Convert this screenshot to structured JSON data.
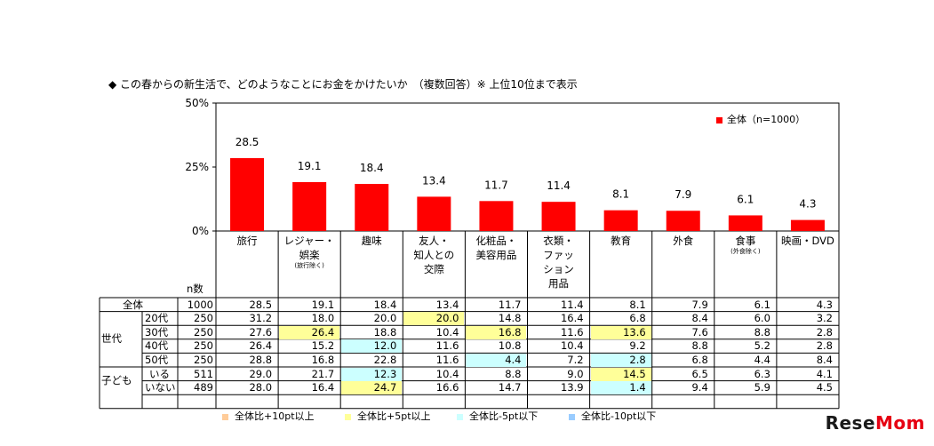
{
  "title": "◆ この春からの新生活で、どのようなことにお金をかけたいか　（複数回答）※ 上位10位まで表示",
  "chart_data": {
    "type": "bar",
    "ylim": [
      0,
      50
    ],
    "yticks": [
      "0%",
      "25%",
      "50%"
    ],
    "categories": [
      "旅行",
      "レジャー・娯楽",
      "趣味",
      "友人・知人との交際",
      "化粧品・美容用品",
      "衣類・ファッション用品",
      "教育",
      "外食",
      "食事",
      "映画・DVD"
    ],
    "category_lines": [
      [
        "旅行"
      ],
      [
        "レジャー・",
        "娯楽"
      ],
      [
        "趣味"
      ],
      [
        "友人・",
        "知人との",
        "交際"
      ],
      [
        "化粧品・",
        "美容用品"
      ],
      [
        "衣類・",
        "ファッ",
        "ション",
        "用品"
      ],
      [
        "教育"
      ],
      [
        "外食"
      ],
      [
        "食事"
      ],
      [
        "映画・DVD"
      ]
    ],
    "category_notes": [
      "",
      "(旅行除く)",
      "",
      "",
      "",
      "",
      "",
      "",
      "(外食除く)",
      ""
    ],
    "series": [
      {
        "name": "全体",
        "values": [
          28.5,
          19.1,
          18.4,
          13.4,
          11.7,
          11.4,
          8.1,
          7.9,
          6.1,
          4.3
        ],
        "color": "#ff0000"
      }
    ],
    "legend": {
      "label": "全体（n=1000）",
      "position": "top-right"
    },
    "value_labels": [
      "28.5",
      "19.1",
      "18.4",
      "13.4",
      "11.7",
      "11.4",
      "8.1",
      "7.9",
      "6.1",
      "4.3"
    ]
  },
  "table": {
    "n_header": "n数",
    "rows": [
      {
        "group": "",
        "label": "全体",
        "n": "1000",
        "values": [
          "28.5",
          "19.1",
          "18.4",
          "13.4",
          "11.7",
          "11.4",
          "8.1",
          "7.9",
          "6.1",
          "4.3"
        ],
        "hl": [
          "",
          "",
          "",
          "",
          "",
          "",
          "",
          "",
          "",
          ""
        ]
      },
      {
        "group": "世代",
        "label": "20代",
        "n": "250",
        "values": [
          "31.2",
          "18.0",
          "20.0",
          "20.0",
          "14.8",
          "16.4",
          "6.8",
          "8.4",
          "6.0",
          "3.2"
        ],
        "hl": [
          "",
          "",
          "",
          "y",
          "",
          "",
          "",
          "",
          "",
          ""
        ]
      },
      {
        "group": "世代",
        "label": "30代",
        "n": "250",
        "values": [
          "27.6",
          "26.4",
          "18.8",
          "10.4",
          "16.8",
          "11.6",
          "13.6",
          "7.6",
          "8.8",
          "2.8"
        ],
        "hl": [
          "",
          "y",
          "",
          "",
          "y",
          "",
          "y",
          "",
          "",
          ""
        ]
      },
      {
        "group": "世代",
        "label": "40代",
        "n": "250",
        "values": [
          "26.4",
          "15.2",
          "12.0",
          "11.6",
          "10.8",
          "10.4",
          "9.2",
          "8.8",
          "5.2",
          "2.8"
        ],
        "hl": [
          "",
          "",
          "b",
          "",
          "",
          "",
          "",
          "",
          "",
          ""
        ]
      },
      {
        "group": "世代",
        "label": "50代",
        "n": "250",
        "values": [
          "28.8",
          "16.8",
          "22.8",
          "11.6",
          "4.4",
          "7.2",
          "2.8",
          "6.8",
          "4.4",
          "8.4"
        ],
        "hl": [
          "",
          "",
          "",
          "",
          "b",
          "",
          "b",
          "",
          "",
          ""
        ]
      },
      {
        "group": "子ども",
        "label": "いる",
        "n": "511",
        "values": [
          "29.0",
          "21.7",
          "12.3",
          "10.4",
          "8.8",
          "9.0",
          "14.5",
          "6.5",
          "6.3",
          "4.1"
        ],
        "hl": [
          "",
          "",
          "b",
          "",
          "",
          "",
          "y",
          "",
          "",
          ""
        ]
      },
      {
        "group": "子ども",
        "label": "いない",
        "n": "489",
        "values": [
          "28.0",
          "16.4",
          "24.7",
          "16.6",
          "14.7",
          "13.9",
          "1.4",
          "9.4",
          "5.9",
          "4.5"
        ],
        "hl": [
          "",
          "",
          "y",
          "",
          "",
          "",
          "b",
          "",
          "",
          ""
        ]
      }
    ],
    "groups": [
      "世代",
      "子ども"
    ]
  },
  "highlight_legend": [
    {
      "label": "全体比+10pt以上",
      "color": "#ffcc99"
    },
    {
      "label": "全体比+5pt以上",
      "color": "#ffff99"
    },
    {
      "label": "全体比-5pt以下",
      "color": "#ccffff"
    },
    {
      "label": "全体比-10pt以下",
      "color": "#99ccff"
    }
  ],
  "brand": {
    "left": "Rese",
    "right": "Mom"
  }
}
